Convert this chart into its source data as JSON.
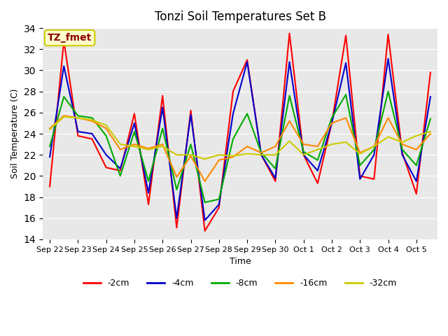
{
  "title": "Tonzi Soil Temperatures Set B",
  "xlabel": "Time",
  "ylabel": "Soil Temperature (C)",
  "ylim": [
    14,
    34
  ],
  "yticks": [
    14,
    16,
    18,
    20,
    22,
    24,
    26,
    28,
    30,
    32,
    34
  ],
  "annotation_text": "TZ_fmet",
  "annotation_color": "#8B0000",
  "annotation_bg": "#FFFFCC",
  "annotation_border": "#CCCC00",
  "colors": {
    "-2cm": "#FF0000",
    "-4cm": "#0000CC",
    "-8cm": "#00AA00",
    "-16cm": "#FF8800",
    "-32cm": "#CCCC00"
  },
  "legend_labels": [
    "-2cm",
    "-4cm",
    "-8cm",
    "-16cm",
    "-32cm"
  ],
  "background_color": "#E8E8E8",
  "plot_bg": "#E8E8E8",
  "x_tick_labels": [
    "Sep 22",
    "Sep 23",
    "Sep 24",
    "Sep 25",
    "Sep 26",
    "Sep 27",
    "Sep 28",
    "Sep 29",
    "Sep 30",
    "Oct 1",
    "Oct 2",
    "Oct 3",
    "Oct 4",
    "Oct 5"
  ],
  "series": {
    "-2cm": [
      19.0,
      32.8,
      23.8,
      23.5,
      20.8,
      20.5,
      25.9,
      17.3,
      27.6,
      15.1,
      26.2,
      14.8,
      17.0,
      28.0,
      31.0,
      22.0,
      19.5,
      33.5,
      22.0,
      19.3,
      25.0,
      33.3,
      20.0,
      19.7,
      33.4,
      22.2,
      18.3,
      29.8
    ],
    "-4cm": [
      21.8,
      30.4,
      24.2,
      24.0,
      22.0,
      20.7,
      25.0,
      18.4,
      26.5,
      16.0,
      25.8,
      15.8,
      17.3,
      25.9,
      30.8,
      22.0,
      19.8,
      30.8,
      22.0,
      20.5,
      25.0,
      30.7,
      19.7,
      22.0,
      31.1,
      22.0,
      19.5,
      27.5
    ],
    "-8cm": [
      22.8,
      27.5,
      25.7,
      25.5,
      23.8,
      20.0,
      24.2,
      19.5,
      24.5,
      18.7,
      23.0,
      17.5,
      17.8,
      23.5,
      25.9,
      22.2,
      20.7,
      27.6,
      22.3,
      21.5,
      25.5,
      27.7,
      21.0,
      22.5,
      28.0,
      22.5,
      21.0,
      25.4
    ],
    "-16cm": [
      24.5,
      25.7,
      25.5,
      25.2,
      24.5,
      22.5,
      23.0,
      22.6,
      23.0,
      19.9,
      21.9,
      19.5,
      21.5,
      21.8,
      22.8,
      22.2,
      22.8,
      25.2,
      23.0,
      22.8,
      25.0,
      25.5,
      22.2,
      22.8,
      25.5,
      23.0,
      22.5,
      24.0
    ],
    "-32cm": [
      24.4,
      25.6,
      25.5,
      25.3,
      24.8,
      23.0,
      22.8,
      22.5,
      22.8,
      22.0,
      22.0,
      21.6,
      22.0,
      21.9,
      22.1,
      22.0,
      22.0,
      23.3,
      22.0,
      22.5,
      23.0,
      23.2,
      22.1,
      22.8,
      23.7,
      23.2,
      23.8,
      24.2
    ]
  }
}
